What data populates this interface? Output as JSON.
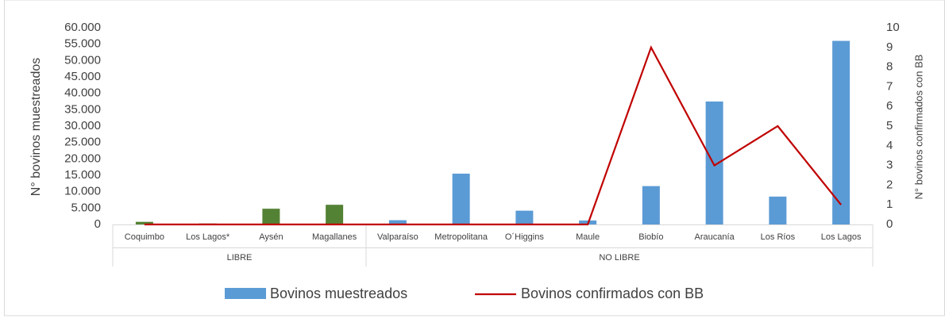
{
  "chart_data": {
    "type": "bar_line",
    "categories": [
      "Coquimbo",
      "Los Lagos*",
      "Aysén",
      "Magallanes",
      "Valparaíso",
      "Metropolitana",
      "O´Higgins",
      "Maule",
      "Biobío",
      "Araucanía",
      "Los Ríos",
      "Los Lagos"
    ],
    "groups": [
      {
        "name": "LIBRE",
        "span": 4
      },
      {
        "name": "NO LIBRE",
        "span": 8
      }
    ],
    "series": [
      {
        "name": "Bovinos muestreados",
        "type": "bar",
        "color": "#5b9bd5",
        "colors": [
          "#548235",
          "#548235",
          "#548235",
          "#548235",
          "#5b9bd5",
          "#5b9bd5",
          "#5b9bd5",
          "#5b9bd5",
          "#5b9bd5",
          "#5b9bd5",
          "#5b9bd5",
          "#5b9bd5"
        ],
        "values": [
          800,
          300,
          4800,
          6000,
          1300,
          15500,
          4200,
          1200,
          11700,
          37500,
          8500,
          56000
        ]
      },
      {
        "name": "Bovinos confirmados con BB",
        "type": "line",
        "color": "#c00000",
        "axis": "y2",
        "values": [
          0,
          0,
          0,
          0,
          0,
          0,
          0,
          0,
          9,
          3,
          5,
          1
        ]
      }
    ],
    "ylabel": "N° bovinos muestreados",
    "y2label": "N° bovinos confirmados con BB",
    "ylim": [
      0,
      60000
    ],
    "yticks": [
      0,
      {
        "value": 5000,
        "label": "5.000"
      },
      {
        "value": 10000,
        "label": "10.000"
      },
      {
        "value": 15000,
        "label": "15.000"
      },
      {
        "value": 20000,
        "label": "20.000"
      },
      {
        "value": 25000,
        "label": "25.000"
      },
      {
        "value": 30000,
        "label": "30.000"
      },
      {
        "value": 35000,
        "label": "35.000"
      },
      {
        "value": 40000,
        "label": "40.000"
      },
      {
        "value": 45000,
        "label": "45.000"
      },
      {
        "value": 50000,
        "label": "50.000"
      },
      {
        "value": 55000,
        "label": "55.000"
      },
      {
        "value": 60000,
        "label": "60.000"
      }
    ],
    "y2lim": [
      0,
      10
    ],
    "y2ticks": [
      0,
      1,
      2,
      3,
      4,
      5,
      6,
      7,
      8,
      9,
      10
    ],
    "legend": "bottom"
  }
}
